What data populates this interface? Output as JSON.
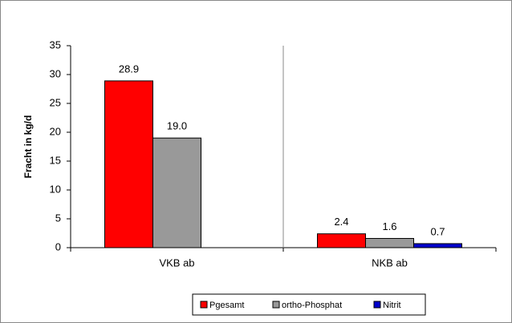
{
  "chart_data": {
    "type": "bar",
    "y_label": "Fracht in kg/d",
    "categories": [
      "VKB ab",
      "NKB ab"
    ],
    "series": [
      {
        "name": "Pgesamt",
        "color": "#ff0000",
        "values": [
          28.9,
          2.4
        ],
        "value_labels": [
          "28.9",
          "2.4"
        ]
      },
      {
        "name": "ortho-Phosphat",
        "color": "#999999",
        "values": [
          19.0,
          1.6
        ],
        "value_labels": [
          "19.0",
          "1.6"
        ]
      },
      {
        "name": "Nitrit",
        "color": "#0000cc",
        "values": [
          null,
          0.7
        ],
        "value_labels": [
          null,
          "0.7"
        ]
      }
    ],
    "ylim": [
      0,
      35
    ],
    "yticks": [
      0,
      5,
      10,
      15,
      20,
      25,
      30,
      35
    ],
    "legend": "bottom"
  }
}
